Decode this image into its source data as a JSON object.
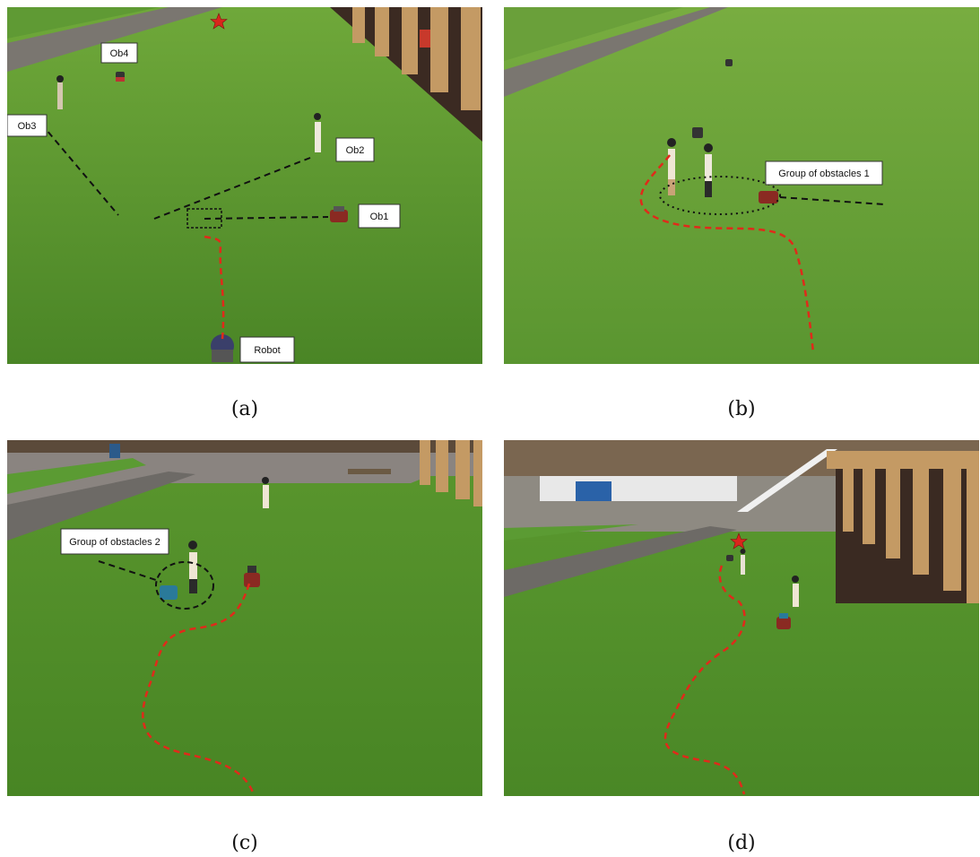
{
  "panels": [
    {
      "caption": "(a)",
      "labels": {
        "ob1": "Ob1",
        "ob2": "Ob2",
        "ob3": "Ob3",
        "ob4": "Ob4",
        "robot": "Robot"
      }
    },
    {
      "caption": "(b)",
      "labels": {
        "group": "Group of obstacles 1"
      }
    },
    {
      "caption": "(c)",
      "labels": {
        "group": "Group of obstacles 2"
      }
    },
    {
      "caption": "(d)",
      "labels": {}
    }
  ],
  "colors": {
    "grass": "#4f8c2a",
    "grass_light": "#6fa83a",
    "path": "#e02a1a",
    "guide": "#111111",
    "star": "#d9261c",
    "path_stone": "#7a7670",
    "building": "#b9935f"
  }
}
